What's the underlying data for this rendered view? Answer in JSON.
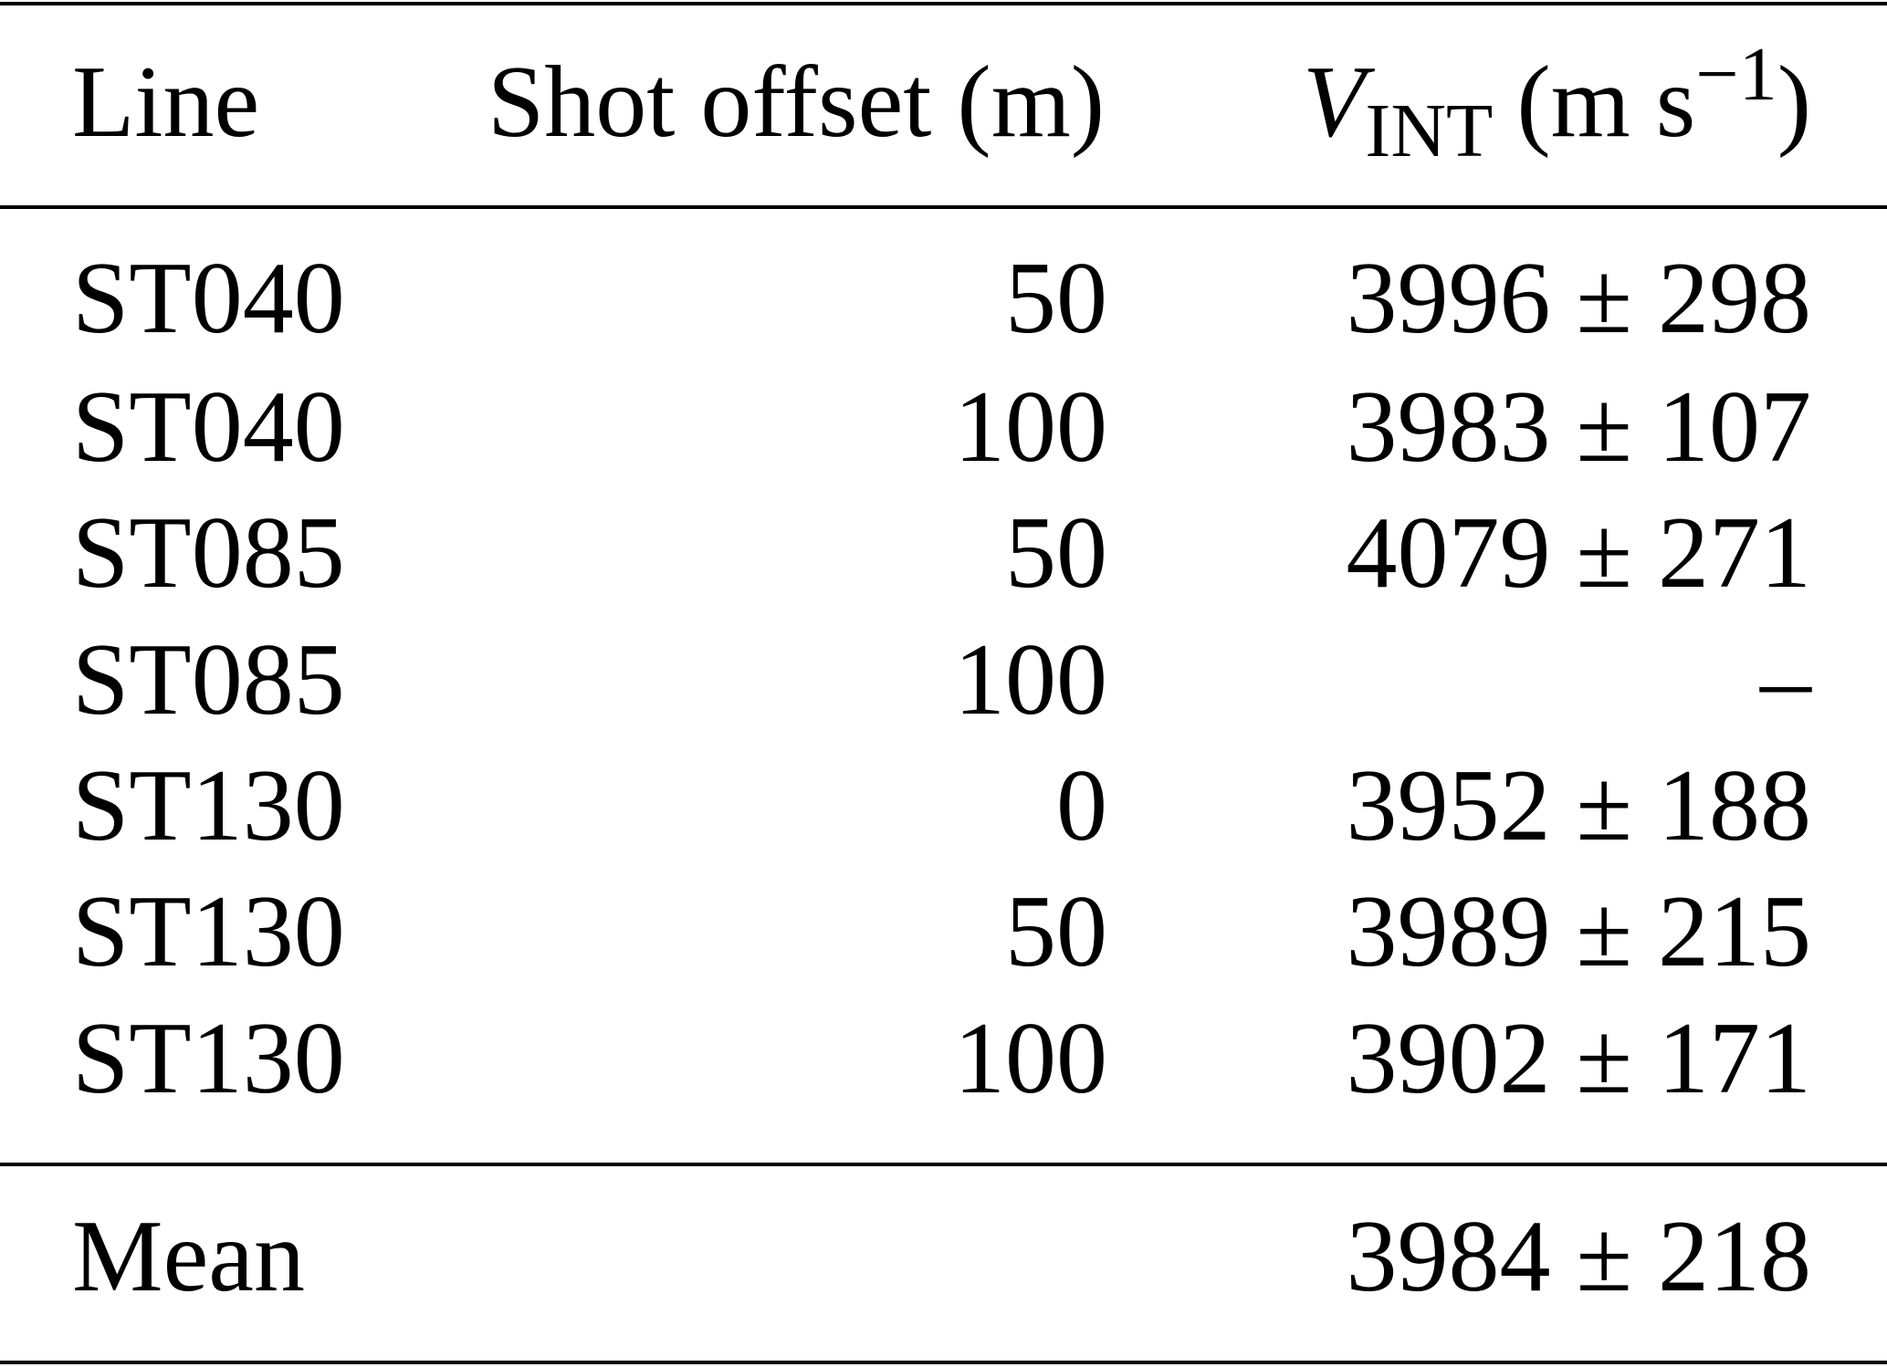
{
  "table": {
    "header": [
      "Line",
      "Shot offset (m)",
      [
        "V",
        "INT",
        "(m s",
        "−1",
        ")"
      ]
    ],
    "rows": [
      [
        "ST040",
        "50",
        "3996 ± 298"
      ],
      [
        "ST040",
        "100",
        "3983 ± 107"
      ],
      [
        "ST085",
        "50",
        "4079 ± 271"
      ],
      [
        "ST085",
        "100",
        "–"
      ],
      [
        "ST130",
        "0",
        "3952 ± 188"
      ],
      [
        "ST130",
        "50",
        "3989 ± 215"
      ],
      [
        "ST130",
        "100",
        "3902 ± 171"
      ]
    ],
    "footer": {
      "label": "Mean",
      "value": "3984 ± 218"
    }
  }
}
